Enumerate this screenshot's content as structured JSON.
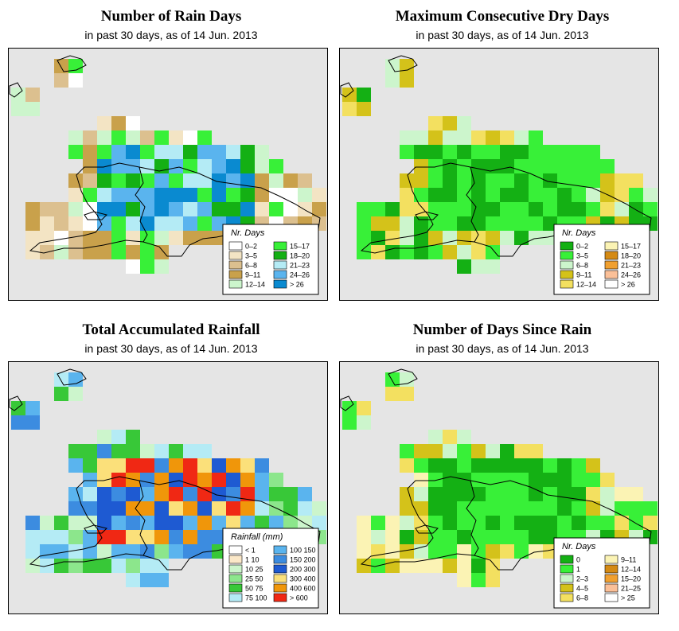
{
  "colors": {
    "ocean": "#e5e5e5",
    "land": "#ffffff",
    "border": "#000000"
  },
  "panels": [
    {
      "id": "rain-days",
      "title": "Number of Rain Days",
      "subtitle": "in past 30 days, as of  14 Jun. 2013",
      "legend": {
        "title": "Nr. Days",
        "items": [
          {
            "label": "0–2",
            "color": "#ffffff"
          },
          {
            "label": "3–5",
            "color": "#f3e4c4"
          },
          {
            "label": "6–8",
            "color": "#dcc08f"
          },
          {
            "label": "9–11",
            "color": "#c9a14b"
          },
          {
            "label": "12–14",
            "color": "#ccf5cc"
          },
          {
            "label": "15–17",
            "color": "#38f038"
          },
          {
            "label": "18–20",
            "color": "#14b014"
          },
          {
            "label": "21–23",
            "color": "#b4ebf5"
          },
          {
            "label": "24–26",
            "color": "#5ab4ee"
          },
          {
            "label": "> 26",
            "color": "#0a8ad0"
          }
        ]
      }
    },
    {
      "id": "max-dry",
      "title": "Maximum Consecutive Dry Days",
      "subtitle": "in past 30 days, as of  14 Jun. 2013",
      "legend": {
        "title": "Nr. Days",
        "items": [
          {
            "label": "0–2",
            "color": "#14b014"
          },
          {
            "label": "3–5",
            "color": "#38f038"
          },
          {
            "label": "6–8",
            "color": "#ccf5cc"
          },
          {
            "label": "9–11",
            "color": "#d4c21a"
          },
          {
            "label": "12–14",
            "color": "#f3e060"
          },
          {
            "label": "15–17",
            "color": "#fbf3b4"
          },
          {
            "label": "18–20",
            "color": "#d48a14"
          },
          {
            "label": "21–23",
            "color": "#f0a030"
          },
          {
            "label": "24–26",
            "color": "#fbc098"
          },
          {
            "label": "> 26",
            "color": "#ffffff"
          }
        ]
      }
    },
    {
      "id": "total-rain",
      "title": "Total Accumulated Rainfall",
      "subtitle": "in past 30 days, as of  14 Jun. 2013",
      "legend": {
        "title": "Rainfall (mm)",
        "items": [
          {
            "label": "< 1",
            "color": "#ffffff"
          },
          {
            "label": "1    10",
            "color": "#fbe8c8"
          },
          {
            "label": "10   25",
            "color": "#ccf5cc"
          },
          {
            "label": "25   50",
            "color": "#8ce68c"
          },
          {
            "label": "50   75",
            "color": "#38c838"
          },
          {
            "label": "75  100",
            "color": "#b4ebf5"
          },
          {
            "label": "100  150",
            "color": "#5ab4ee"
          },
          {
            "label": "150  200",
            "color": "#3c8ce0"
          },
          {
            "label": "200  300",
            "color": "#1e5ad2"
          },
          {
            "label": "300  400",
            "color": "#fbe07a"
          },
          {
            "label": "400  600",
            "color": "#f0960a"
          },
          {
            "label": "> 600",
            "color": "#f02814"
          }
        ]
      }
    },
    {
      "id": "days-since",
      "title": "Number of Days Since Rain",
      "subtitle": "in past 30 days, as of  14 Jun. 2013",
      "legend": {
        "title": "Nr. Days",
        "items": [
          {
            "label": "0",
            "color": "#14b014"
          },
          {
            "label": "1",
            "color": "#38f038"
          },
          {
            "label": "2–3",
            "color": "#ccf5cc"
          },
          {
            "label": "4–5",
            "color": "#d4c21a"
          },
          {
            "label": "6–8",
            "color": "#f3e060"
          },
          {
            "label": "9–11",
            "color": "#fbf3b4"
          },
          {
            "label": "12–14",
            "color": "#d48a14"
          },
          {
            "label": "15–20",
            "color": "#f0a030"
          },
          {
            "label": "21–25",
            "color": "#fbc098"
          },
          {
            "label": "> 25",
            "color": "#ffffff"
          }
        ]
      }
    }
  ]
}
